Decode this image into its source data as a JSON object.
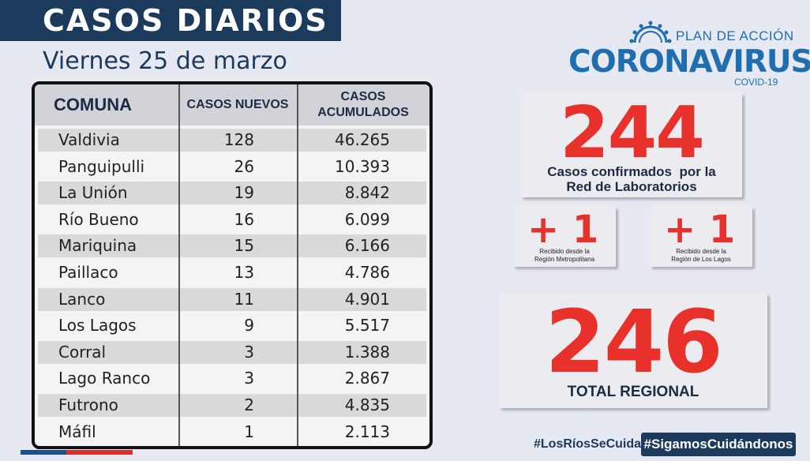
{
  "header": {
    "title": "CASOS DIARIOS",
    "date": "Viernes 25 de marzo"
  },
  "table": {
    "headers": {
      "comuna": "COMUNA",
      "nuevos": "CASOS NUEVOS",
      "acumulados_1": "CASOS",
      "acumulados_2": "ACUMULADOS"
    },
    "rows": [
      {
        "comuna": "Valdivia",
        "nuevos": "128",
        "acumulados": "46.265"
      },
      {
        "comuna": "Panguipulli",
        "nuevos": "26",
        "acumulados": "10.393"
      },
      {
        "comuna": "La Unión",
        "nuevos": "19",
        "acumulados": "8.842"
      },
      {
        "comuna": "Río Bueno",
        "nuevos": "16",
        "acumulados": "6.099"
      },
      {
        "comuna": "Mariquina",
        "nuevos": "15",
        "acumulados": "6.166"
      },
      {
        "comuna": "Paillaco",
        "nuevos": "13",
        "acumulados": "4.786"
      },
      {
        "comuna": "Lanco",
        "nuevos": "11",
        "acumulados": "4.901"
      },
      {
        "comuna": "Los Lagos",
        "nuevos": "9",
        "acumulados": "5.517"
      },
      {
        "comuna": "Corral",
        "nuevos": "3",
        "acumulados": "1.388"
      },
      {
        "comuna": "Lago Ranco",
        "nuevos": "3",
        "acumulados": "2.867"
      },
      {
        "comuna": "Futrono",
        "nuevos": "2",
        "acumulados": "4.835"
      },
      {
        "comuna": "Máfil",
        "nuevos": "1",
        "acumulados": "2.113"
      }
    ]
  },
  "logo": {
    "plan": "PLAN DE ACCIÓN",
    "name": "CORONAVIRUS",
    "sub": "COVID-19",
    "icon": "virus-sun-icon"
  },
  "summary": {
    "confirmed_value": "244",
    "confirmed_caption_1": "Casos confirmados  por la",
    "confirmed_caption_2": "Red de Laboratorios",
    "extra1_value": "+ 1",
    "extra1_caption_1": "Recibido desde la",
    "extra1_caption_2": "Región Metropolitana",
    "extra2_value": "+ 1",
    "extra2_caption_1": "Recibido desde la",
    "extra2_caption_2": "Región de Los Lagos",
    "total_value": "246",
    "total_caption": "TOTAL REGIONAL"
  },
  "footer": {
    "hashtag1": "#LosRíosSeCuida",
    "hashtag2": "#SigamosCuidándonos"
  },
  "colors": {
    "navy": "#1b3a5c",
    "accent_red": "#e8312a",
    "logo_blue": "#1f6fb0"
  }
}
